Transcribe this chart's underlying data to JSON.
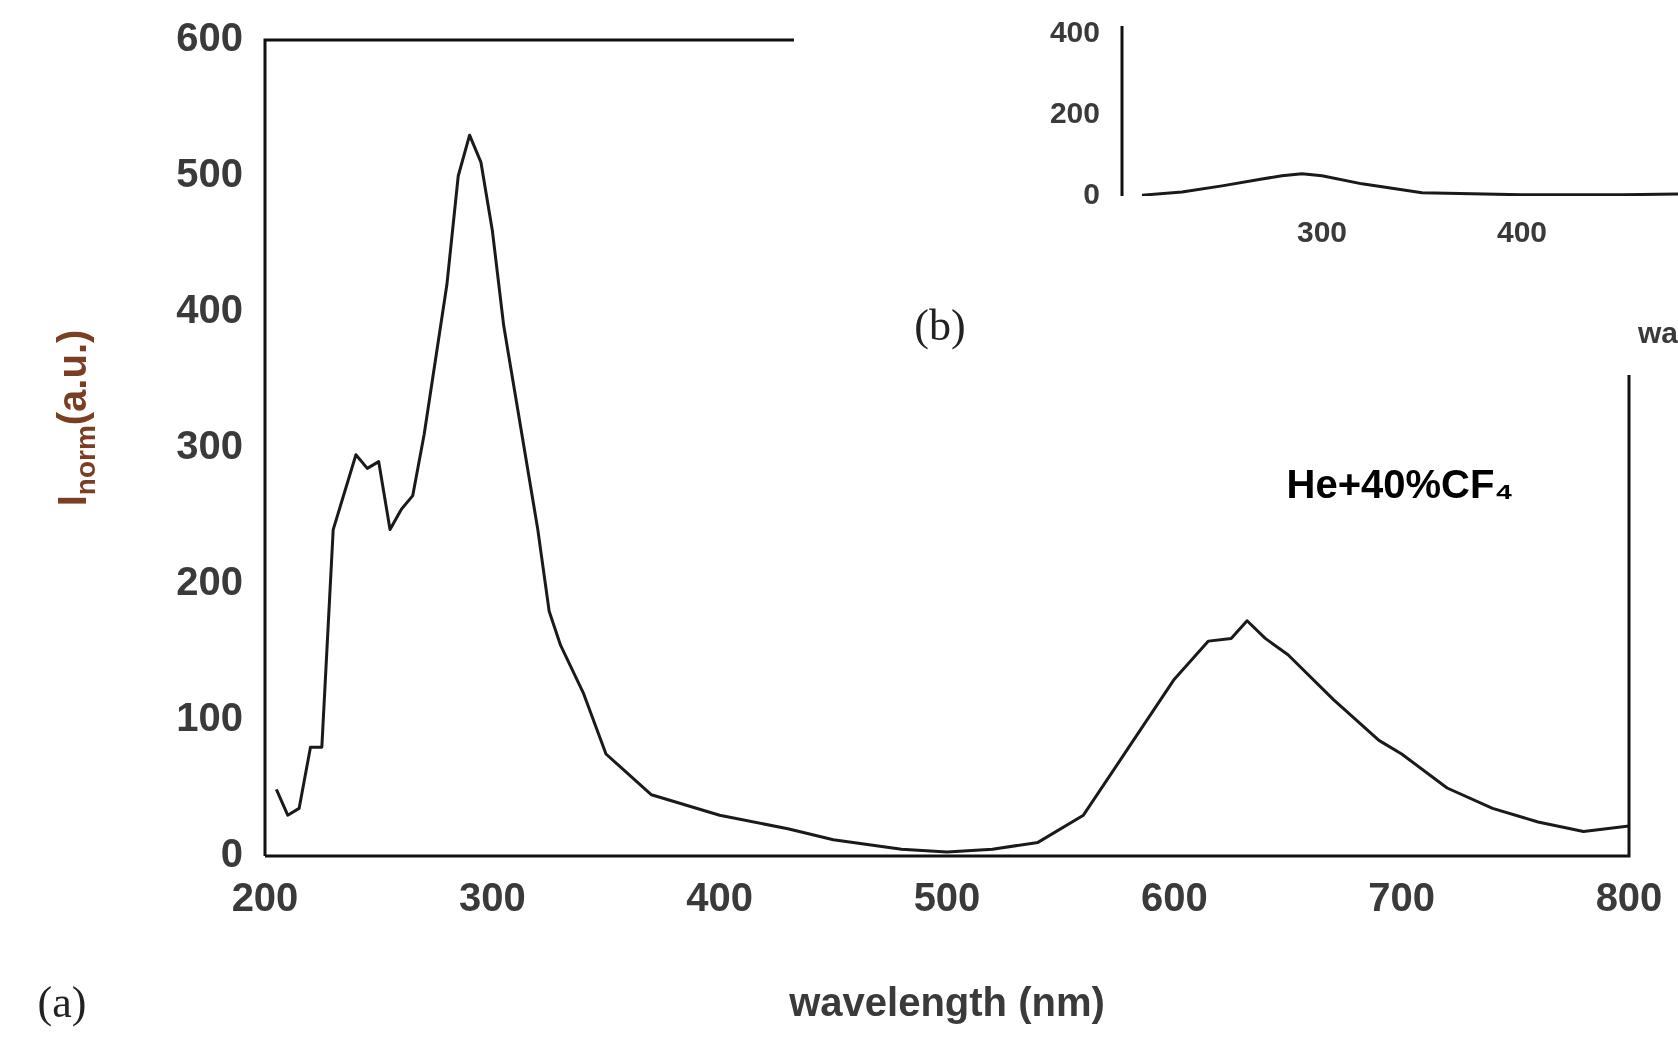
{
  "chart_data": [
    {
      "type": "line",
      "xlabel": "wavelength (nm)",
      "ylabel": "I$_{norm}$(a.u.)",
      "annotations": [
        "He+40%CF₄",
        "(a)"
      ],
      "color": "#1a1a1a",
      "grid": false,
      "x": [
        205,
        210,
        215,
        220,
        225,
        230,
        240,
        245,
        250,
        255,
        260,
        265,
        270,
        280,
        285,
        290,
        295,
        300,
        305,
        310,
        320,
        325,
        330,
        340,
        350,
        370,
        400,
        430,
        450,
        480,
        500,
        520,
        540,
        560,
        580,
        600,
        615,
        625,
        632,
        640,
        650,
        670,
        690,
        700,
        720,
        740,
        760,
        780,
        800
      ],
      "values": [
        49,
        30,
        35,
        80,
        80,
        240,
        295,
        285,
        290,
        240,
        255,
        265,
        310,
        420,
        500,
        530,
        510,
        460,
        390,
        340,
        240,
        180,
        155,
        120,
        75,
        45,
        30,
        20,
        12,
        5,
        3,
        5,
        10,
        30,
        80,
        130,
        158,
        160,
        173,
        160,
        148,
        115,
        85,
        75,
        50,
        35,
        25,
        18,
        22
      ],
      "xlim": [
        200,
        800
      ],
      "ylim": [
        0,
        600
      ],
      "xticks": [
        200,
        300,
        400,
        500,
        600,
        700,
        800
      ],
      "yticks": [
        0,
        100,
        200,
        300,
        400,
        500,
        600
      ]
    },
    {
      "type": "line",
      "xlabel": "wa",
      "annotations": [
        "(b)"
      ],
      "color": "#1a1a1a",
      "grid": false,
      "x": [
        210,
        230,
        250,
        270,
        280,
        290,
        300,
        320,
        350,
        400,
        450,
        478
      ],
      "values": [
        2,
        10,
        25,
        42,
        50,
        55,
        50,
        30,
        8,
        3,
        3,
        5
      ],
      "xlim": [
        200,
        478
      ],
      "ylim": [
        0,
        420
      ],
      "xticks": [
        300,
        400
      ],
      "yticks": [
        0,
        200,
        400
      ]
    }
  ]
}
